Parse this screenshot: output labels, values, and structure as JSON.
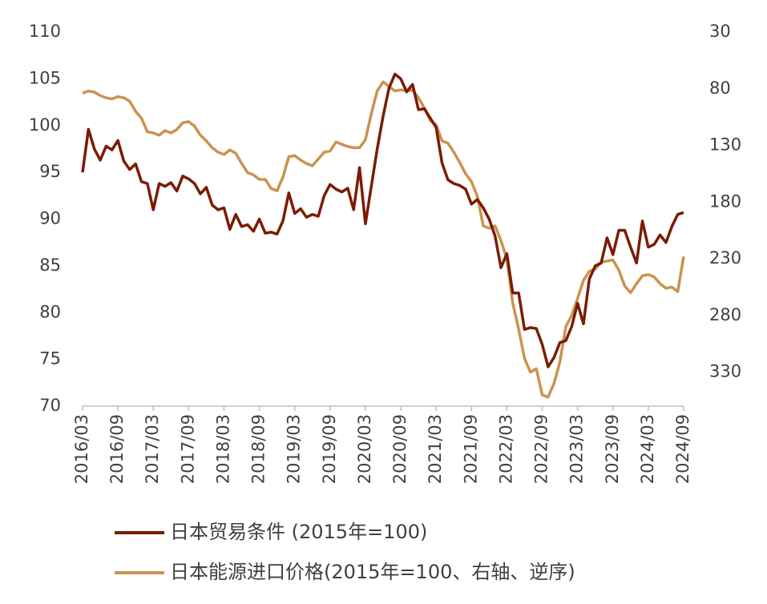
{
  "chart_data": {
    "type": "line",
    "categories": [
      "2016/03",
      null,
      null,
      null,
      null,
      null,
      "2016/09",
      null,
      null,
      null,
      null,
      null,
      "2017/03",
      null,
      null,
      null,
      null,
      null,
      "2017/09",
      null,
      null,
      null,
      null,
      null,
      "2018/03",
      null,
      null,
      null,
      null,
      null,
      "2018/09",
      null,
      null,
      null,
      null,
      null,
      "2019/03",
      null,
      null,
      null,
      null,
      null,
      "2019/09",
      null,
      null,
      null,
      null,
      null,
      "2020/03",
      null,
      null,
      null,
      null,
      null,
      "2020/09",
      null,
      null,
      null,
      null,
      null,
      "2021/03",
      null,
      null,
      null,
      null,
      null,
      "2021/09",
      null,
      null,
      null,
      null,
      null,
      "2022/03",
      null,
      null,
      null,
      null,
      null,
      "2022/09",
      null,
      null,
      null,
      null,
      null,
      "2023/03",
      null,
      null,
      null,
      null,
      null,
      "2023/09",
      null,
      null,
      null,
      null,
      null,
      "2024/03",
      null,
      null,
      null,
      null,
      null,
      "2024/09"
    ],
    "series": [
      {
        "name": "日本贸易条件 (2015年=100)",
        "color": "#7a1c04",
        "values": [
          95,
          99.6,
          97.5,
          96.3,
          97.8,
          97.4,
          98.4,
          96.2,
          95.3,
          95.9,
          94,
          93.8,
          91,
          93.8,
          93.5,
          93.9,
          93,
          94.6,
          94.3,
          93.8,
          92.7,
          93.4,
          91.5,
          91,
          91.2,
          88.9,
          90.5,
          89.2,
          89.4,
          88.7,
          90,
          88.5,
          88.6,
          88.4,
          89.8,
          92.8,
          90.6,
          91.1,
          90.2,
          90.5,
          90.3,
          92.5,
          93.7,
          93.2,
          92.9,
          93.3,
          91,
          95.5,
          89.5,
          93.5,
          97.5,
          101,
          104,
          105.5,
          105,
          103.6,
          104.4,
          101.7,
          101.8,
          100.8,
          99.8,
          96,
          94.2,
          93.8,
          93.6,
          93.2,
          91.6,
          92.1,
          91.2,
          90,
          88.2,
          84.8,
          86.3,
          82.1,
          82.1,
          78.2,
          78.4,
          78.3,
          76.6,
          74.2,
          75.2,
          76.8,
          77,
          78.5,
          81,
          78.8,
          83.6,
          85,
          85.3,
          88,
          86.2,
          88.8,
          88.8,
          87,
          85.3,
          89.8,
          87,
          87.3,
          88.3,
          87.5,
          89.2,
          90.5,
          90.7
        ]
      },
      {
        "name": "日本能源进口价格(2015年=100、右轴、逆序)",
        "color": "#c9944e",
        "axis": "y2",
        "values": [
          84,
          82,
          83,
          86,
          88,
          89,
          87,
          88,
          91,
          100,
          106,
          118,
          119,
          121,
          117,
          119,
          116,
          110,
          109,
          113,
          121,
          126,
          132,
          136,
          138,
          134,
          137,
          146,
          154,
          156,
          160,
          160,
          168,
          170,
          158,
          140,
          139,
          143,
          146,
          148,
          142,
          136,
          135,
          127,
          129,
          131,
          132,
          132,
          125,
          102,
          82,
          74,
          78,
          82,
          81,
          82,
          81,
          88,
          97,
          108,
          112,
          126,
          128,
          136,
          145,
          155,
          162,
          175,
          201,
          203,
          201,
          214,
          230,
          269,
          292,
          318,
          330,
          327,
          350,
          352,
          340,
          321,
          290,
          280,
          265,
          249,
          241,
          239,
          233,
          232,
          231,
          240,
          254,
          260,
          252,
          245,
          244,
          246,
          252,
          256,
          255,
          259,
          228
        ]
      }
    ],
    "ylim": [
      70,
      110
    ],
    "yticks": [
      70,
      75,
      80,
      85,
      90,
      95,
      100,
      105,
      110
    ],
    "y2lim": [
      30,
      360
    ],
    "y2ticks": [
      30,
      80,
      130,
      180,
      230,
      280,
      330
    ],
    "y2_reversed": true,
    "grid": false
  }
}
